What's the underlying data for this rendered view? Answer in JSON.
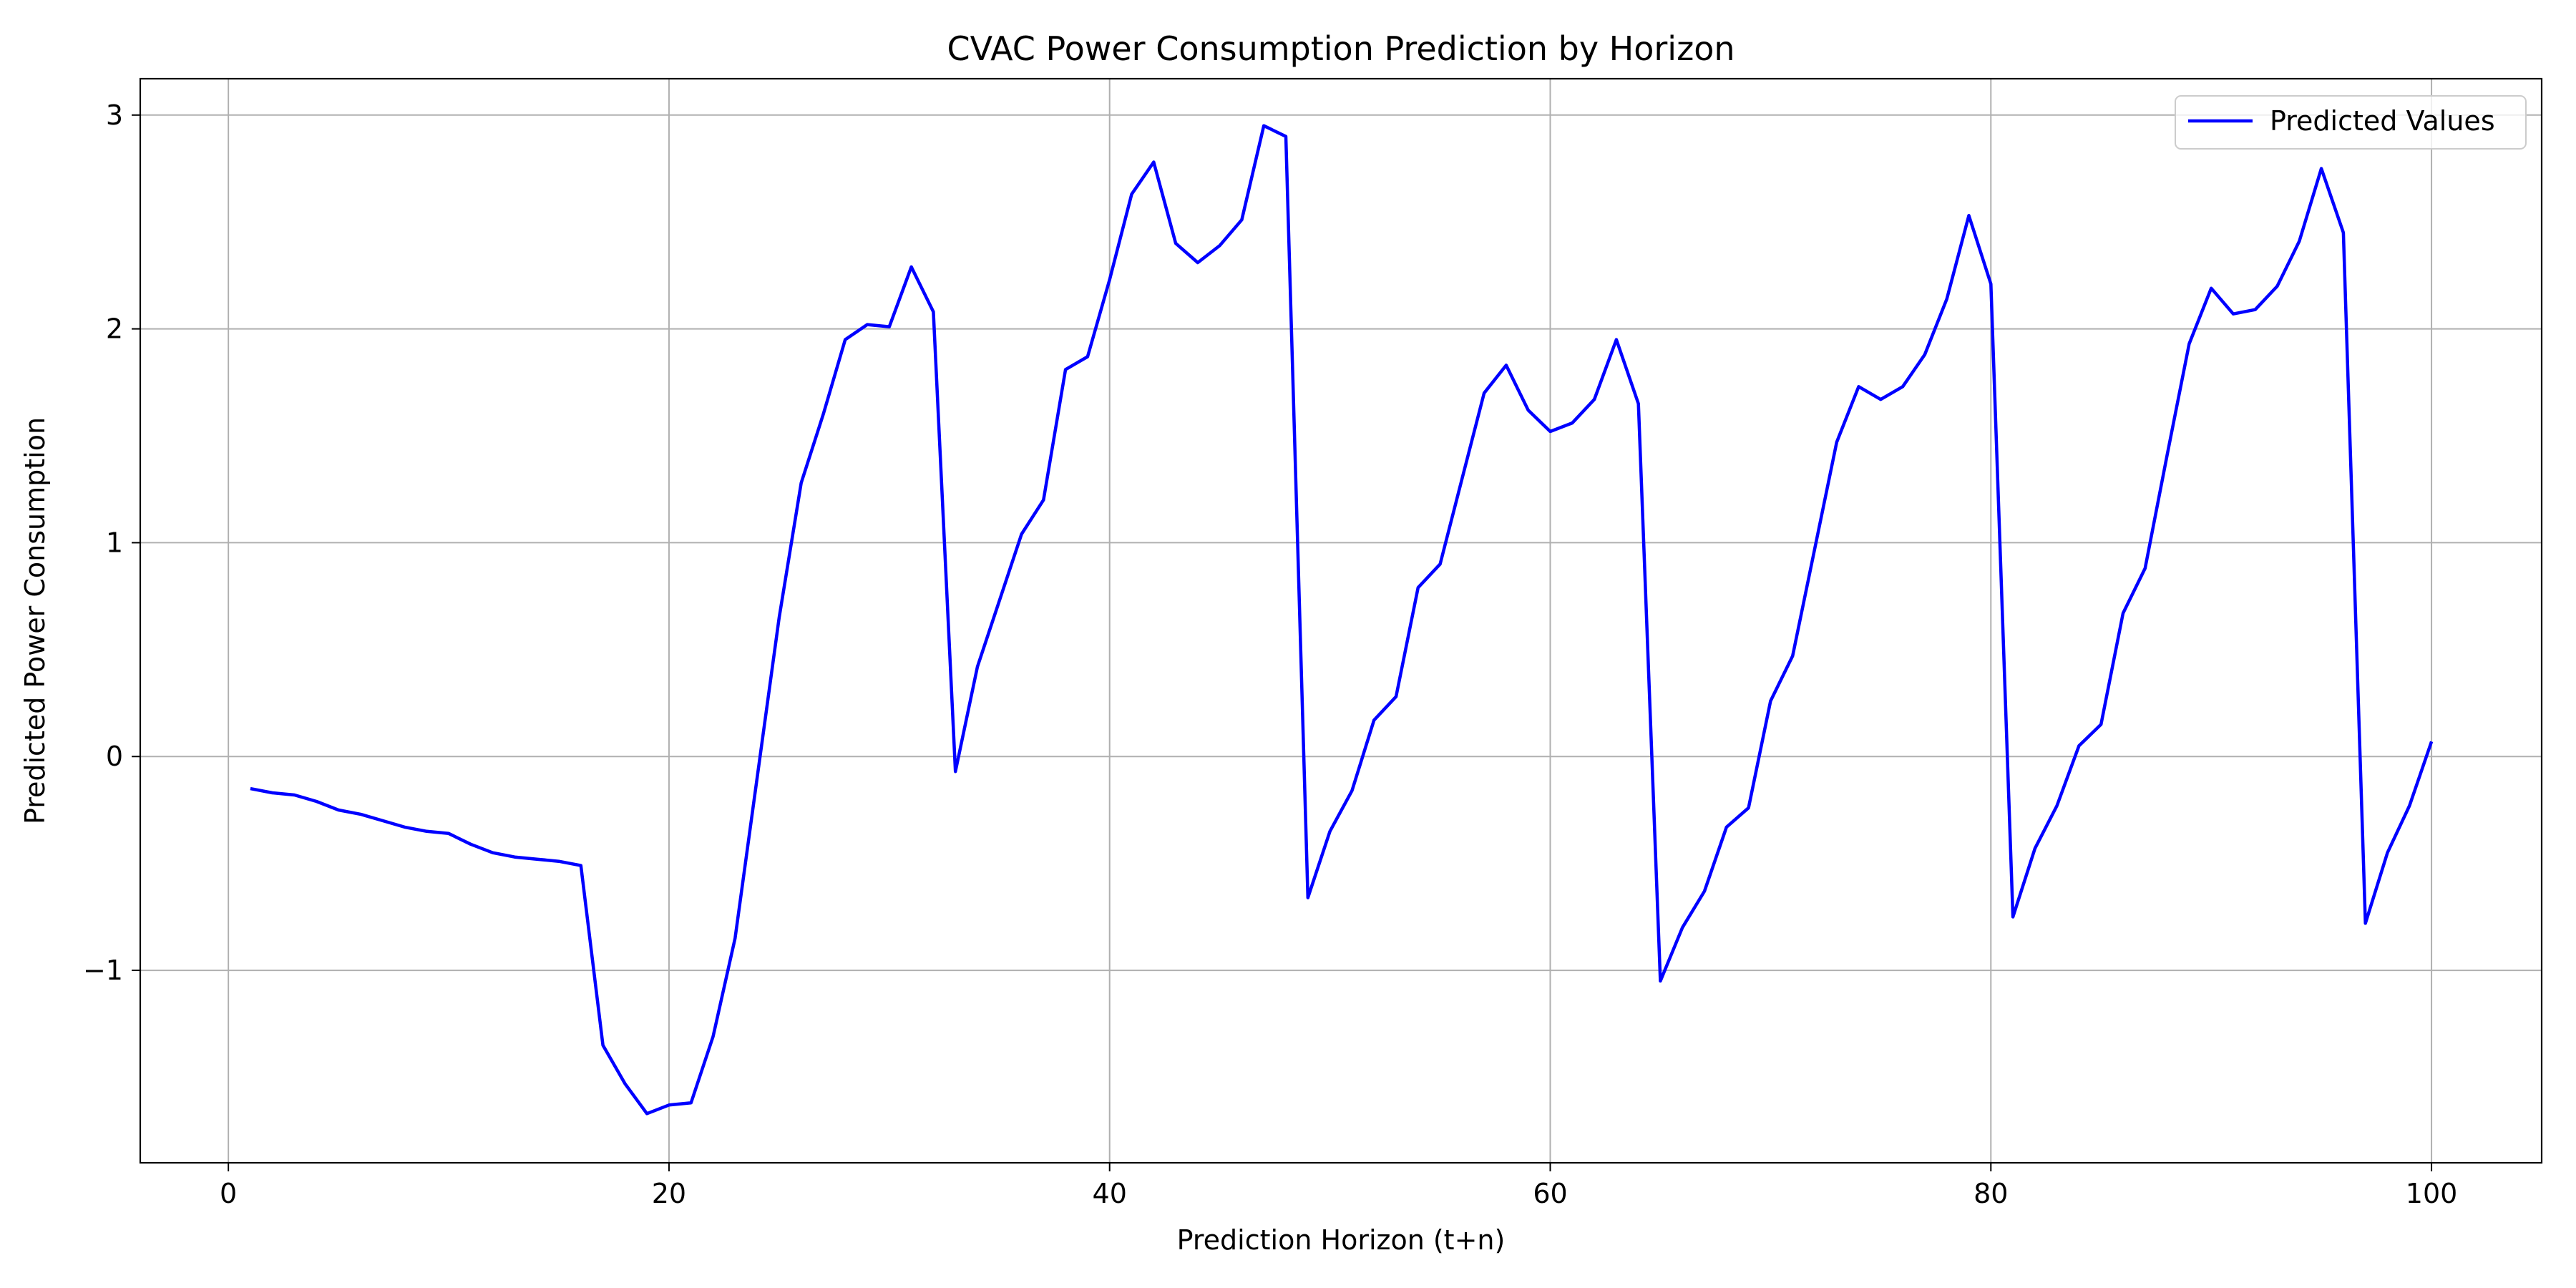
{
  "chart_data": {
    "type": "line",
    "title": "CVAC Power Consumption Prediction by Horizon",
    "xlabel": "Prediction Horizon (t+n)",
    "ylabel": "Predicted Power Consumption",
    "xlim": [
      -4,
      105
    ],
    "ylim": [
      -1.9,
      3.17
    ],
    "xticks": [
      0,
      20,
      40,
      60,
      80,
      100
    ],
    "yticks": [
      -1,
      0,
      1,
      2,
      3
    ],
    "ytick_labels": [
      "−1",
      "0",
      "1",
      "2",
      "3"
    ],
    "xtick_labels": [
      "0",
      "20",
      "40",
      "60",
      "80",
      "100"
    ],
    "grid": true,
    "legend_position": "top-right",
    "series": [
      {
        "name": "Predicted Values",
        "color": "#0000ff",
        "x": [
          1,
          2,
          3,
          4,
          5,
          6,
          7,
          8,
          9,
          10,
          11,
          12,
          13,
          14,
          15,
          16,
          17,
          18,
          19,
          20,
          21,
          22,
          23,
          24,
          25,
          26,
          27,
          28,
          29,
          30,
          31,
          32,
          33,
          34,
          35,
          36,
          37,
          38,
          39,
          40,
          41,
          42,
          43,
          44,
          45,
          46,
          47,
          48,
          49,
          50,
          51,
          52,
          53,
          54,
          55,
          56,
          57,
          58,
          59,
          60,
          61,
          62,
          63,
          64,
          65,
          66,
          67,
          68,
          69,
          70,
          71,
          72,
          73,
          74,
          75,
          76,
          77,
          78,
          79,
          80,
          81,
          82,
          83,
          84,
          85,
          86,
          87,
          88,
          89,
          90,
          91,
          92,
          93,
          94,
          95,
          96,
          97,
          98,
          99,
          100
        ],
        "y": [
          -0.15,
          -0.17,
          -0.18,
          -0.21,
          -0.25,
          -0.27,
          -0.3,
          -0.33,
          -0.35,
          -0.36,
          -0.41,
          -0.45,
          -0.47,
          -0.48,
          -0.49,
          -0.51,
          -1.35,
          -1.53,
          -1.67,
          -1.63,
          -1.62,
          -1.31,
          -0.85,
          -0.1,
          0.65,
          1.28,
          1.6,
          1.95,
          2.02,
          2.01,
          2.29,
          2.08,
          -0.07,
          0.42,
          0.73,
          1.04,
          1.2,
          1.81,
          1.87,
          2.23,
          2.63,
          2.78,
          2.4,
          2.31,
          2.39,
          2.51,
          2.95,
          2.9,
          -0.66,
          -0.35,
          -0.16,
          0.17,
          0.28,
          0.79,
          0.9,
          1.3,
          1.7,
          1.83,
          1.62,
          1.52,
          1.56,
          1.67,
          1.95,
          1.65,
          -1.05,
          -0.8,
          -0.63,
          -0.33,
          -0.24,
          0.26,
          0.47,
          0.97,
          1.47,
          1.73,
          1.67,
          1.73,
          1.88,
          2.14,
          2.53,
          2.21,
          -0.75,
          -0.43,
          -0.23,
          0.05,
          0.15,
          0.67,
          0.88,
          1.41,
          1.93,
          2.19,
          2.07,
          2.09,
          2.2,
          2.41,
          2.75,
          2.45,
          -0.78,
          -0.45,
          -0.23,
          0.07
        ]
      }
    ]
  }
}
